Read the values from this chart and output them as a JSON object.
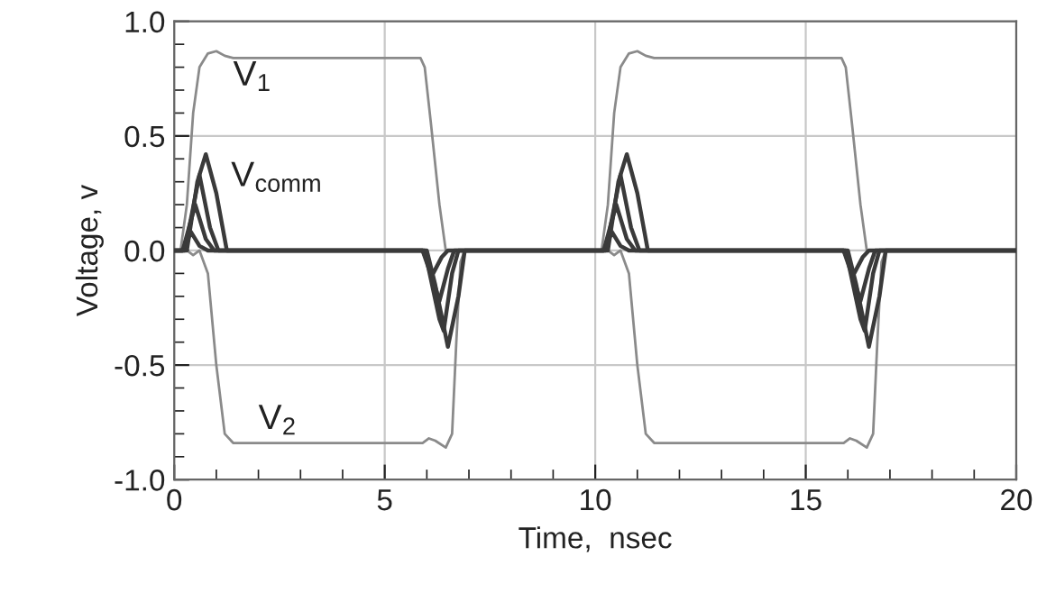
{
  "chart_data": {
    "type": "line",
    "xlabel": "Time,  nsec",
    "ylabel": "Voltage, v",
    "xlim": [
      0,
      20
    ],
    "ylim": [
      -1.0,
      1.0
    ],
    "xticks": [
      0,
      5,
      10,
      15,
      20
    ],
    "yticks": [
      {
        "value": -1.0,
        "label": "-1.0"
      },
      {
        "value": -0.5,
        "label": "-0.5"
      },
      {
        "value": 0.0,
        "label": "0.0"
      },
      {
        "value": 0.5,
        "label": "0.5"
      },
      {
        "value": 1.0,
        "label": "1.0"
      }
    ],
    "grid": true,
    "marker": "none",
    "line_style": "solid",
    "series": [
      {
        "name": "V$_{1}$",
        "color": "#8a8a8a",
        "x": [
          0,
          0.15,
          0.3,
          0.45,
          0.6,
          0.8,
          1.0,
          1.2,
          1.4,
          5.85,
          5.95,
          6.1,
          6.3,
          6.45,
          10.15,
          10.3,
          10.45,
          10.6,
          10.8,
          11.0,
          11.2,
          11.4,
          15.85,
          15.95,
          16.1,
          16.3,
          16.45,
          20
        ],
        "values": [
          0,
          0,
          0.2,
          0.6,
          0.8,
          0.86,
          0.87,
          0.85,
          0.84,
          0.84,
          0.8,
          0.55,
          0.2,
          0.0,
          0,
          0.2,
          0.6,
          0.8,
          0.86,
          0.87,
          0.85,
          0.84,
          0.84,
          0.8,
          0.55,
          0.2,
          0.0,
          0
        ]
      },
      {
        "name": "V$_{2}$",
        "color": "#8a8a8a",
        "x": [
          0,
          0.3,
          0.45,
          0.6,
          0.8,
          1.0,
          1.2,
          1.4,
          5.9,
          6.05,
          6.2,
          6.45,
          6.6,
          6.7,
          6.8,
          6.9,
          10.3,
          10.45,
          10.6,
          10.8,
          11.0,
          11.2,
          11.4,
          15.9,
          16.05,
          16.2,
          16.45,
          16.6,
          16.7,
          16.8,
          16.9,
          20
        ],
        "values": [
          0,
          0,
          -0.02,
          0.0,
          -0.1,
          -0.5,
          -0.8,
          -0.84,
          -0.84,
          -0.82,
          -0.83,
          -0.86,
          -0.8,
          -0.4,
          -0.05,
          0,
          0,
          -0.02,
          0.0,
          -0.1,
          -0.5,
          -0.8,
          -0.84,
          -0.84,
          -0.82,
          -0.83,
          -0.86,
          -0.8,
          -0.4,
          -0.05,
          0,
          0
        ]
      },
      {
        "color": "#3a3a3a",
        "x": [
          0,
          0.2,
          0.4,
          0.6,
          0.8,
          5.9,
          6.15,
          6.35,
          6.5,
          10.2,
          10.4,
          10.6,
          10.8,
          15.9,
          16.15,
          16.35,
          16.5,
          20
        ],
        "values": [
          0,
          0,
          0.08,
          0.02,
          0,
          0,
          -0.1,
          -0.03,
          0,
          0,
          0.08,
          0.02,
          0,
          0,
          -0.1,
          -0.03,
          0,
          0
        ]
      },
      {
        "color": "#3a3a3a",
        "x": [
          0,
          0.2,
          0.5,
          0.75,
          0.95,
          5.9,
          6.2,
          6.3,
          6.5,
          6.65,
          10.2,
          10.5,
          10.75,
          10.95,
          15.9,
          16.2,
          16.3,
          16.5,
          16.65,
          20
        ],
        "values": [
          0,
          0,
          0.2,
          0.05,
          0,
          0,
          -0.16,
          -0.22,
          -0.08,
          0,
          0,
          0.2,
          0.05,
          0,
          0,
          -0.16,
          -0.22,
          -0.08,
          0,
          0
        ]
      },
      {
        "color": "#3a3a3a",
        "x": [
          0,
          0.25,
          0.6,
          0.85,
          1.05,
          5.95,
          6.3,
          6.4,
          6.6,
          6.75,
          10.25,
          10.6,
          10.85,
          11.05,
          15.95,
          16.3,
          16.4,
          16.6,
          16.75,
          20
        ],
        "values": [
          0,
          0,
          0.33,
          0.1,
          0,
          0,
          -0.3,
          -0.35,
          -0.1,
          0,
          0,
          0.33,
          0.1,
          0,
          0,
          -0.3,
          -0.35,
          -0.1,
          0,
          0
        ]
      },
      {
        "name": "V$_{comm}$",
        "color": "#3a3a3a",
        "x": [
          0,
          0.3,
          0.55,
          0.75,
          1.0,
          1.25,
          6.0,
          6.2,
          6.5,
          6.75,
          6.9,
          10.3,
          10.55,
          10.75,
          11.0,
          11.25,
          16.0,
          16.2,
          16.5,
          16.75,
          16.9,
          20
        ],
        "values": [
          0,
          0,
          0.3,
          0.42,
          0.25,
          0,
          0,
          -0.15,
          -0.42,
          -0.2,
          0,
          0,
          0.3,
          0.42,
          0.25,
          0,
          0,
          -0.15,
          -0.42,
          -0.2,
          0,
          0
        ]
      }
    ]
  }
}
